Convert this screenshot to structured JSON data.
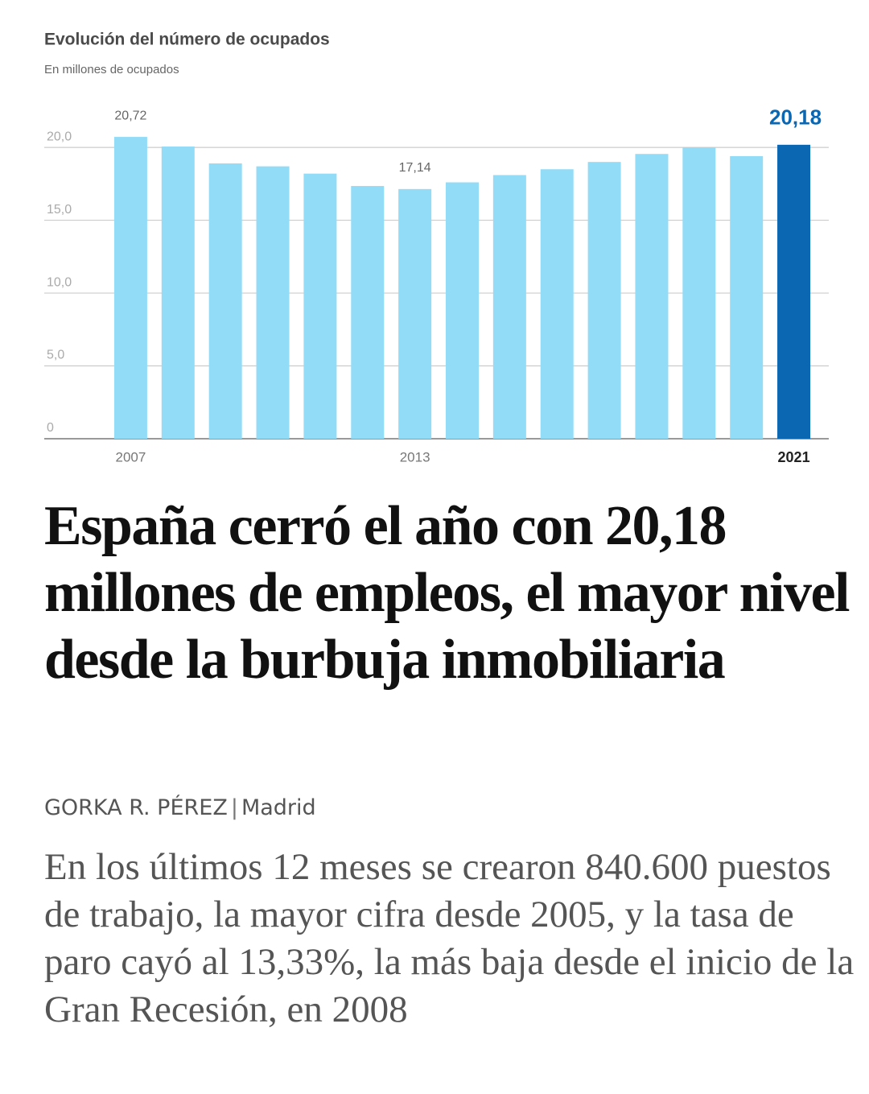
{
  "chart_data": {
    "type": "bar",
    "title": "Evolución del número de ocupados",
    "subtitle": "En millones de ocupados",
    "categories": [
      "2007",
      null,
      null,
      null,
      null,
      null,
      "2013",
      null,
      null,
      null,
      null,
      null,
      null,
      null,
      "2021"
    ],
    "values": [
      20.72,
      20.06,
      18.9,
      18.7,
      18.2,
      17.35,
      17.14,
      17.6,
      18.1,
      18.5,
      19.0,
      19.55,
      19.98,
      19.4,
      20.18
    ],
    "value_labels": [
      "20,72",
      null,
      null,
      null,
      null,
      null,
      "17,14",
      null,
      null,
      null,
      null,
      null,
      null,
      null,
      "20,18"
    ],
    "colors": [
      "#93dcf8",
      "#93dcf8",
      "#93dcf8",
      "#93dcf8",
      "#93dcf8",
      "#93dcf8",
      "#93dcf8",
      "#93dcf8",
      "#93dcf8",
      "#93dcf8",
      "#93dcf8",
      "#93dcf8",
      "#93dcf8",
      "#93dcf8",
      "#0b67b2"
    ],
    "ylim": [
      0,
      21
    ],
    "yticks": [
      0,
      {
        "value": 5,
        "label": "5,0"
      },
      {
        "value": 10,
        "label": "10,0"
      },
      {
        "value": 15,
        "label": "15,0"
      },
      {
        "value": 20,
        "label": "20,0"
      }
    ],
    "grid": true
  },
  "article": {
    "headline": "España cerró el año con 20,18 millones de empleos, el mayor nivel desde la burbuja inmobiliaria",
    "author": "GORKA R. PÉREZ",
    "separator": "|",
    "location": "Madrid",
    "lede": "En los últimos 12 meses se crearon 840.600 puestos de trabajo, la mayor cifra desde 2005, y la tasa de paro cayó al 13,33%, la más baja desde el inicio de la Gran Recesión, en 2008"
  }
}
